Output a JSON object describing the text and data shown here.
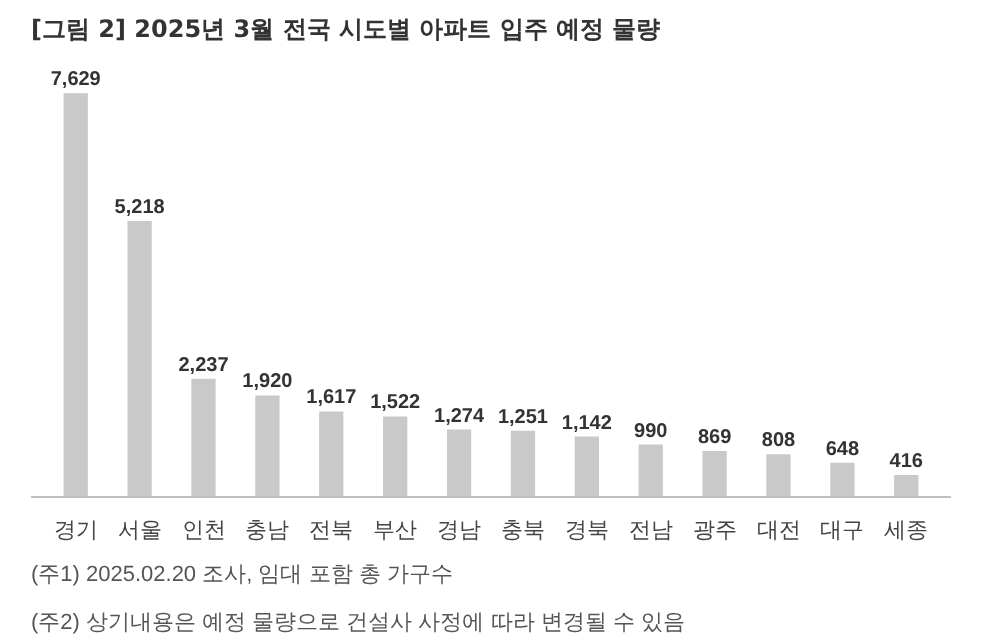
{
  "chart_data": {
    "type": "bar",
    "title": "[그림 2] 2025년 3월 전국 시도별 아파트 입주 예정 물량",
    "categories": [
      "경기",
      "서울",
      "인천",
      "충남",
      "전북",
      "부산",
      "경남",
      "충북",
      "경북",
      "전남",
      "광주",
      "대전",
      "대구",
      "세종"
    ],
    "values": [
      7629,
      5218,
      2237,
      1920,
      1617,
      1522,
      1274,
      1251,
      1142,
      990,
      869,
      808,
      648,
      416
    ],
    "value_labels": [
      "7,629",
      "5,218",
      "2,237",
      "1,920",
      "1,617",
      "1,522",
      "1,274",
      "1,251",
      "1,142",
      "990",
      "869",
      "808",
      "648",
      "416"
    ],
    "color": "#c9c9c9",
    "grid": false,
    "annotations": [
      "(주1) 2025.02.20 조사, 임대 포함 총 가구수",
      "(주2) 상기내용은 예정 물량으로 건설사 사정에 따라 변경될 수 있음"
    ]
  }
}
